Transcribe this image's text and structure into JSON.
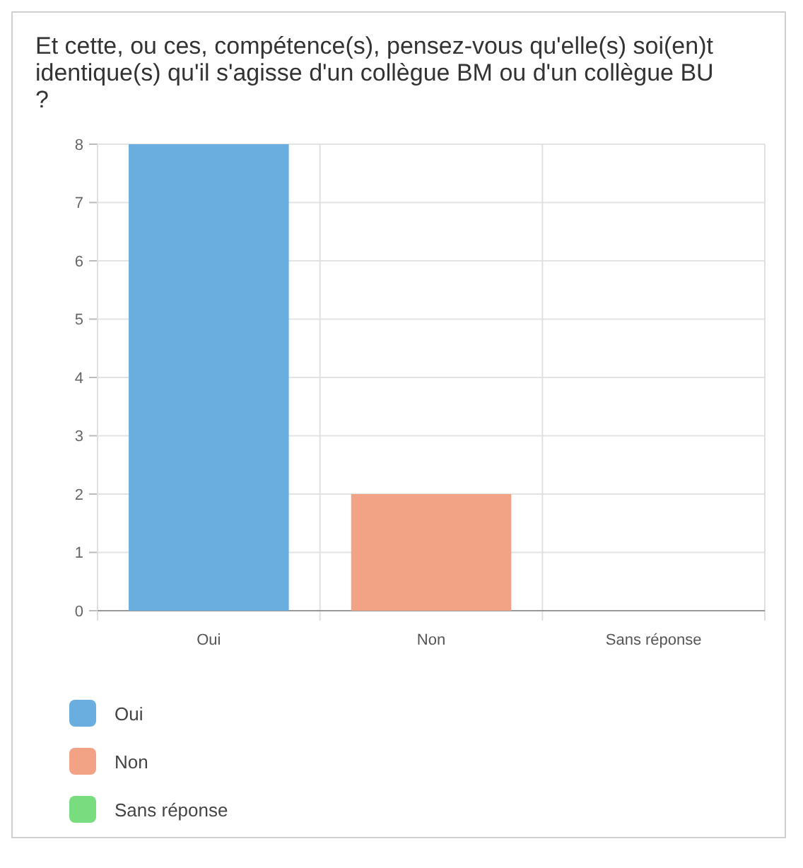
{
  "chart_data": {
    "type": "bar",
    "title": "Et cette, ou ces, compétence(s), pensez-vous qu'elle(s) soi(en)t identique(s) qu'il s'agisse d'un collègue BM ou d'un collègue BU ?",
    "categories": [
      "Oui",
      "Non",
      "Sans réponse"
    ],
    "stacked": true,
    "series": [
      {
        "name": "Oui",
        "color": "#6aaee0",
        "values": [
          8,
          null,
          null
        ]
      },
      {
        "name": "Non",
        "color": "#f2a285",
        "values": [
          null,
          2,
          null
        ]
      },
      {
        "name": "Sans réponse",
        "color": "#79dc7f",
        "values": [
          null,
          null,
          0
        ]
      }
    ],
    "ylim": [
      0,
      8
    ],
    "yticks": [
      0,
      1,
      2,
      3,
      4,
      5,
      6,
      7,
      8
    ],
    "grid": true,
    "legend": "bottom"
  }
}
